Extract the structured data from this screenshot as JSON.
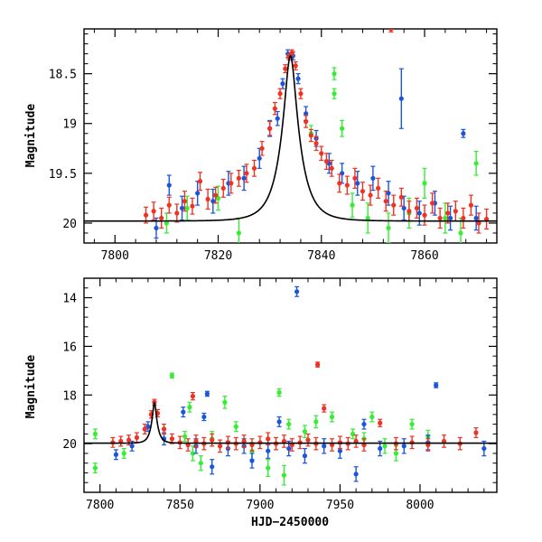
{
  "chart_data": [
    {
      "type": "scatter",
      "panel": "top",
      "title": "",
      "xlabel": "",
      "ylabel": "Magnitude",
      "xlim": [
        7794,
        7874
      ],
      "ylim": [
        20.2,
        18.05
      ],
      "y_inverted": true,
      "x_ticks": [
        7800,
        7820,
        7840,
        7860
      ],
      "x_tick_labels": [
        "7800",
        "7820",
        "7840",
        "7860"
      ],
      "y_ticks": [
        18.5,
        19,
        19.5,
        20
      ],
      "y_tick_labels": [
        "18.5",
        "19",
        "19.5",
        "20"
      ],
      "model_curve": {
        "name": "microlensing fit",
        "color": "#000000",
        "baseline": 19.98,
        "peak_mag": 18.32,
        "t0": 7834.0,
        "tE": 3.6
      },
      "series": [
        {
          "name": "red",
          "color": "#ee3322",
          "points": [
            [
              7806,
              19.92,
              0.08
            ],
            [
              7807.5,
              19.88,
              0.09
            ],
            [
              7809,
              19.95,
              0.1
            ],
            [
              7810.5,
              19.82,
              0.08
            ],
            [
              7812,
              19.9,
              0.09
            ],
            [
              7813.5,
              19.78,
              0.1
            ],
            [
              7815,
              19.83,
              0.08
            ],
            [
              7816.5,
              19.58,
              0.09
            ],
            [
              7818,
              19.76,
              0.1
            ],
            [
              7819.5,
              19.72,
              0.08
            ],
            [
              7821,
              19.65,
              0.09
            ],
            [
              7822.5,
              19.6,
              0.1
            ],
            [
              7824,
              19.55,
              0.08
            ],
            [
              7825.5,
              19.5,
              0.09
            ],
            [
              7827,
              19.45,
              0.08
            ],
            [
              7828.5,
              19.25,
              0.07
            ],
            [
              7830,
              19.05,
              0.07
            ],
            [
              7831,
              18.85,
              0.06
            ],
            [
              7832,
              18.7,
              0.05
            ],
            [
              7833,
              18.45,
              0.04
            ],
            [
              7833.7,
              18.33,
              0.03
            ],
            [
              7834.3,
              18.29,
              0.03
            ],
            [
              7835,
              18.42,
              0.04
            ],
            [
              7836,
              18.7,
              0.05
            ],
            [
              7837,
              18.98,
              0.06
            ],
            [
              7838,
              19.12,
              0.06
            ],
            [
              7839,
              19.2,
              0.07
            ],
            [
              7840,
              19.3,
              0.07
            ],
            [
              7841,
              19.38,
              0.08
            ],
            [
              7842,
              19.45,
              0.08
            ],
            [
              7843.5,
              19.6,
              0.09
            ],
            [
              7845,
              19.62,
              0.09
            ],
            [
              7846.5,
              19.55,
              0.1
            ],
            [
              7848,
              19.68,
              0.09
            ],
            [
              7849.5,
              19.72,
              0.1
            ],
            [
              7851,
              19.65,
              0.1
            ],
            [
              7852.5,
              19.78,
              0.1
            ],
            [
              7854,
              19.82,
              0.1
            ],
            [
              7855.5,
              19.74,
              0.09
            ],
            [
              7857,
              19.88,
              0.1
            ],
            [
              7858.5,
              19.85,
              0.1
            ],
            [
              7860,
              19.92,
              0.1
            ],
            [
              7861.5,
              19.8,
              0.1
            ],
            [
              7863,
              19.95,
              0.1
            ],
            [
              7864.5,
              19.9,
              0.1
            ],
            [
              7866,
              19.88,
              0.1
            ],
            [
              7867.5,
              19.95,
              0.1
            ],
            [
              7869,
              19.82,
              0.1
            ],
            [
              7870.5,
              20.0,
              0.1
            ],
            [
              7872,
              19.96,
              0.1
            ],
            [
              7853.5,
              18.05,
              0.03
            ]
          ]
        },
        {
          "name": "blue",
          "color": "#1a55dd",
          "points": [
            [
              7808,
              20.05,
              0.1
            ],
            [
              7810.5,
              19.62,
              0.1
            ],
            [
              7813,
              19.85,
              0.12
            ],
            [
              7816,
              19.7,
              0.12
            ],
            [
              7819,
              19.78,
              0.12
            ],
            [
              7822,
              19.6,
              0.12
            ],
            [
              7825,
              19.55,
              0.12
            ],
            [
              7828,
              19.35,
              0.1
            ],
            [
              7830,
              19.05,
              0.08
            ],
            [
              7831.5,
              18.95,
              0.07
            ],
            [
              7832.5,
              18.6,
              0.05
            ],
            [
              7833.5,
              18.3,
              0.04
            ],
            [
              7834.5,
              18.32,
              0.04
            ],
            [
              7835.5,
              18.55,
              0.05
            ],
            [
              7837,
              18.9,
              0.07
            ],
            [
              7839,
              19.15,
              0.08
            ],
            [
              7841.5,
              19.4,
              0.1
            ],
            [
              7844,
              19.5,
              0.1
            ],
            [
              7847,
              19.6,
              0.12
            ],
            [
              7850,
              19.55,
              0.12
            ],
            [
              7853,
              19.7,
              0.12
            ],
            [
              7855.5,
              18.75,
              0.3
            ],
            [
              7856,
              19.85,
              0.12
            ],
            [
              7859,
              19.9,
              0.12
            ],
            [
              7862,
              19.8,
              0.12
            ],
            [
              7865,
              19.95,
              0.12
            ],
            [
              7867.5,
              19.1,
              0.04
            ],
            [
              7870,
              19.95,
              0.12
            ]
          ]
        },
        {
          "name": "green",
          "color": "#33ee33",
          "points": [
            [
              7810,
              20.0,
              0.1
            ],
            [
              7814,
              19.85,
              0.12
            ],
            [
              7820,
              19.75,
              0.12
            ],
            [
              7824,
              20.1,
              0.15
            ],
            [
              7838,
              19.1,
              0.08
            ],
            [
              7842.5,
              18.5,
              0.06
            ],
            [
              7842.5,
              18.7,
              0.05
            ],
            [
              7844,
              19.05,
              0.08
            ],
            [
              7846,
              19.82,
              0.12
            ],
            [
              7849,
              19.95,
              0.15
            ],
            [
              7853,
              20.05,
              0.15
            ],
            [
              7857,
              19.9,
              0.15
            ],
            [
              7860,
              19.6,
              0.15
            ],
            [
              7864,
              19.95,
              0.15
            ],
            [
              7867,
              20.1,
              0.15
            ],
            [
              7870,
              19.4,
              0.12
            ]
          ]
        }
      ]
    },
    {
      "type": "scatter",
      "panel": "bottom",
      "title": "",
      "xlabel": "HJD−2450000",
      "ylabel": "Magnitude",
      "xlim": [
        7790,
        8048
      ],
      "ylim": [
        22.0,
        13.2
      ],
      "y_inverted": true,
      "x_ticks": [
        7800,
        7850,
        7900,
        7950,
        8000
      ],
      "x_tick_labels": [
        "7800",
        "7850",
        "7900",
        "7950",
        "8000"
      ],
      "y_ticks": [
        14,
        16,
        18,
        20
      ],
      "y_tick_labels": [
        "14",
        "16",
        "18",
        "20"
      ],
      "model_curve": {
        "name": "microlensing fit",
        "color": "#000000",
        "baseline": 19.98,
        "peak_mag": 18.32,
        "t0": 7834.0,
        "tE": 3.6
      },
      "series": [
        {
          "name": "red",
          "color": "#ee3322",
          "points": [
            [
              7808,
              19.95,
              0.2
            ],
            [
              7813,
              19.9,
              0.2
            ],
            [
              7818,
              19.85,
              0.2
            ],
            [
              7823,
              19.75,
              0.2
            ],
            [
              7828,
              19.4,
              0.2
            ],
            [
              7832,
              18.8,
              0.15
            ],
            [
              7834,
              18.3,
              0.12
            ],
            [
              7836,
              18.75,
              0.15
            ],
            [
              7840,
              19.4,
              0.2
            ],
            [
              7845,
              19.8,
              0.2
            ],
            [
              7850,
              19.95,
              0.25
            ],
            [
              7855,
              20.05,
              0.25
            ],
            [
              7858,
              18.05,
              0.15
            ],
            [
              7860,
              19.9,
              0.25
            ],
            [
              7865,
              20.0,
              0.25
            ],
            [
              7870,
              19.85,
              0.25
            ],
            [
              7875,
              20.1,
              0.25
            ],
            [
              7880,
              19.95,
              0.25
            ],
            [
              7885,
              20.0,
              0.25
            ],
            [
              7890,
              19.9,
              0.25
            ],
            [
              7895,
              20.05,
              0.25
            ],
            [
              7900,
              19.95,
              0.25
            ],
            [
              7905,
              19.8,
              0.25
            ],
            [
              7910,
              20.0,
              0.25
            ],
            [
              7915,
              19.9,
              0.25
            ],
            [
              7920,
              20.05,
              0.25
            ],
            [
              7925,
              19.95,
              0.25
            ],
            [
              7930,
              19.85,
              0.25
            ],
            [
              7936,
              16.75,
              0.1
            ],
            [
              7935,
              20.0,
              0.25
            ],
            [
              7940,
              18.55,
              0.15
            ],
            [
              7945,
              20.05,
              0.25
            ],
            [
              7950,
              19.95,
              0.25
            ],
            [
              7955,
              20.0,
              0.25
            ],
            [
              7960,
              19.9,
              0.25
            ],
            [
              7965,
              20.05,
              0.25
            ],
            [
              7975,
              19.15,
              0.15
            ],
            [
              7985,
              20.0,
              0.25
            ],
            [
              7995,
              19.95,
              0.25
            ],
            [
              8005,
              20.05,
              0.25
            ],
            [
              8015,
              19.9,
              0.25
            ],
            [
              8025,
              20.0,
              0.25
            ],
            [
              8035,
              19.55,
              0.2
            ]
          ]
        },
        {
          "name": "blue",
          "color": "#1a55dd",
          "points": [
            [
              7810,
              20.45,
              0.2
            ],
            [
              7820,
              20.1,
              0.2
            ],
            [
              7830,
              19.3,
              0.2
            ],
            [
              7840,
              19.8,
              0.25
            ],
            [
              7852,
              18.7,
              0.2
            ],
            [
              7860,
              20.1,
              0.3
            ],
            [
              7865,
              18.9,
              0.15
            ],
            [
              7867,
              17.95,
              0.1
            ],
            [
              7870,
              20.95,
              0.3
            ],
            [
              7880,
              20.2,
              0.3
            ],
            [
              7890,
              20.1,
              0.3
            ],
            [
              7895,
              20.7,
              0.3
            ],
            [
              7905,
              20.3,
              0.3
            ],
            [
              7912,
              19.1,
              0.2
            ],
            [
              7918,
              20.2,
              0.3
            ],
            [
              7923,
              13.75,
              0.2
            ],
            [
              7928,
              20.5,
              0.3
            ],
            [
              7940,
              20.1,
              0.3
            ],
            [
              7950,
              20.3,
              0.3
            ],
            [
              7960,
              21.25,
              0.3
            ],
            [
              7965,
              19.2,
              0.2
            ],
            [
              7975,
              20.2,
              0.3
            ],
            [
              7990,
              20.1,
              0.3
            ],
            [
              8005,
              19.95,
              0.3
            ],
            [
              8010,
              17.6,
              0.1
            ],
            [
              8040,
              20.2,
              0.3
            ]
          ]
        },
        {
          "name": "green",
          "color": "#33ee33",
          "points": [
            [
              7797,
              19.6,
              0.2
            ],
            [
              7797,
              21.0,
              0.2
            ],
            [
              7815,
              20.4,
              0.2
            ],
            [
              7845,
              17.2,
              0.1
            ],
            [
              7853,
              19.7,
              0.2
            ],
            [
              7856,
              18.5,
              0.2
            ],
            [
              7858,
              20.4,
              0.3
            ],
            [
              7863,
              20.8,
              0.3
            ],
            [
              7870,
              19.8,
              0.3
            ],
            [
              7878,
              18.3,
              0.25
            ],
            [
              7885,
              19.3,
              0.2
            ],
            [
              7895,
              20.3,
              0.35
            ],
            [
              7905,
              21.0,
              0.35
            ],
            [
              7912,
              17.9,
              0.15
            ],
            [
              7915,
              21.3,
              0.4
            ],
            [
              7918,
              19.2,
              0.2
            ],
            [
              7928,
              19.5,
              0.25
            ],
            [
              7935,
              19.1,
              0.25
            ],
            [
              7945,
              18.9,
              0.2
            ],
            [
              7958,
              19.6,
              0.2
            ],
            [
              7965,
              19.8,
              0.25
            ],
            [
              7970,
              18.9,
              0.2
            ],
            [
              7978,
              20.1,
              0.3
            ],
            [
              7985,
              20.4,
              0.3
            ],
            [
              7995,
              19.2,
              0.2
            ],
            [
              8005,
              19.7,
              0.25
            ]
          ]
        }
      ]
    }
  ]
}
